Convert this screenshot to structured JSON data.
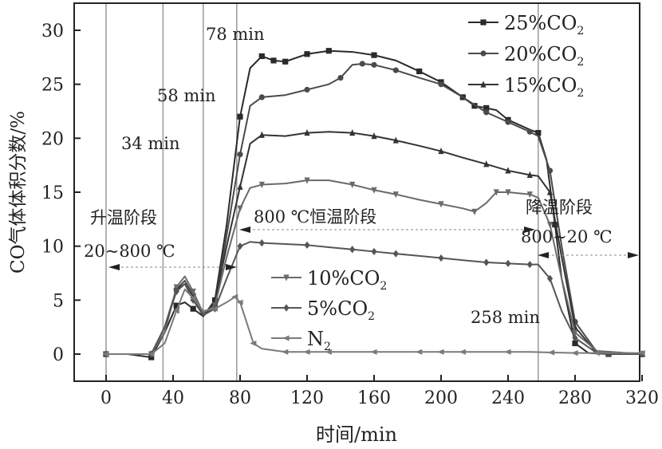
{
  "chart_data": {
    "type": "line",
    "title": "",
    "xlabel": "时间/min",
    "ylabel": "CO气体体积分数/%",
    "xlim": [
      -20,
      320
    ],
    "ylim": [
      -3,
      32.5
    ],
    "xticks": [
      0,
      40,
      80,
      120,
      160,
      200,
      240,
      280,
      320
    ],
    "yticks": [
      0,
      5,
      10,
      15,
      20,
      25,
      30
    ],
    "grid": false,
    "legend_placement": [
      "top-right",
      "center"
    ],
    "vlines": [
      0,
      34,
      58,
      78,
      258
    ],
    "annotations": {
      "t34": "34 min",
      "t58": "58 min",
      "t78": "78 min",
      "t258": "258 min",
      "heat": "升温阶段",
      "heat_range": "20~800 ℃",
      "hold": "800 ℃恒温阶段",
      "cool": "降温阶段",
      "cool_range": "800~20 ℃"
    },
    "series": [
      {
        "name": "25%CO2",
        "label": "25%CO",
        "sub": "2",
        "marker": "square",
        "color": "#2a2a2a",
        "points": [
          [
            0,
            0
          ],
          [
            13,
            0
          ],
          [
            27,
            -0.3
          ],
          [
            35,
            2
          ],
          [
            42,
            4.5
          ],
          [
            47,
            4.8
          ],
          [
            52,
            4.2
          ],
          [
            58,
            3.5
          ],
          [
            65,
            5
          ],
          [
            72,
            12
          ],
          [
            80,
            22
          ],
          [
            86,
            26.5
          ],
          [
            93,
            27.6
          ],
          [
            100,
            27.2
          ],
          [
            107,
            27.1
          ],
          [
            120,
            27.8
          ],
          [
            133,
            28.1
          ],
          [
            147,
            28
          ],
          [
            160,
            27.7
          ],
          [
            173,
            27.2
          ],
          [
            187,
            26.2
          ],
          [
            200,
            25.2
          ],
          [
            213,
            23.8
          ],
          [
            220,
            23
          ],
          [
            227,
            22.8
          ],
          [
            233,
            22.6
          ],
          [
            240,
            21.7
          ],
          [
            253,
            20.8
          ],
          [
            258,
            20.5
          ],
          [
            263,
            18
          ],
          [
            268,
            12
          ],
          [
            272,
            7
          ],
          [
            280,
            1
          ],
          [
            288,
            0.1
          ],
          [
            300,
            0
          ],
          [
            320,
            0
          ]
        ]
      },
      {
        "name": "20%CO2",
        "label": "20%CO",
        "sub": "2",
        "marker": "circle",
        "color": "#4a4a4a",
        "points": [
          [
            0,
            0
          ],
          [
            13,
            0
          ],
          [
            27,
            0
          ],
          [
            35,
            2.5
          ],
          [
            42,
            6
          ],
          [
            47,
            6.8
          ],
          [
            52,
            5.5
          ],
          [
            58,
            3.6
          ],
          [
            65,
            4.5
          ],
          [
            72,
            11
          ],
          [
            80,
            18.5
          ],
          [
            86,
            23
          ],
          [
            93,
            23.8
          ],
          [
            107,
            24
          ],
          [
            120,
            24.5
          ],
          [
            133,
            25
          ],
          [
            140,
            25.6
          ],
          [
            147,
            26.8
          ],
          [
            153,
            26.9
          ],
          [
            160,
            26.8
          ],
          [
            173,
            26.3
          ],
          [
            187,
            25.6
          ],
          [
            200,
            25
          ],
          [
            213,
            23.8
          ],
          [
            227,
            22.4
          ],
          [
            240,
            21.5
          ],
          [
            253,
            20.6
          ],
          [
            258,
            20.2
          ],
          [
            265,
            17
          ],
          [
            272,
            10
          ],
          [
            280,
            3
          ],
          [
            293,
            0.2
          ],
          [
            300,
            0
          ],
          [
            320,
            0
          ]
        ]
      },
      {
        "name": "15%CO2",
        "label": "15%CO",
        "sub": "2",
        "marker": "triangle-up",
        "color": "#333333",
        "points": [
          [
            0,
            0
          ],
          [
            13,
            0
          ],
          [
            27,
            0
          ],
          [
            35,
            2.5
          ],
          [
            42,
            6
          ],
          [
            47,
            6.5
          ],
          [
            52,
            5.2
          ],
          [
            58,
            3.5
          ],
          [
            65,
            4.8
          ],
          [
            72,
            10
          ],
          [
            80,
            15.5
          ],
          [
            86,
            19.5
          ],
          [
            93,
            20.3
          ],
          [
            107,
            20.2
          ],
          [
            120,
            20.5
          ],
          [
            133,
            20.6
          ],
          [
            147,
            20.5
          ],
          [
            160,
            20.2
          ],
          [
            173,
            19.8
          ],
          [
            187,
            19.3
          ],
          [
            200,
            18.8
          ],
          [
            213,
            18.2
          ],
          [
            227,
            17.6
          ],
          [
            240,
            17
          ],
          [
            253,
            16.6
          ],
          [
            258,
            16.5
          ],
          [
            265,
            15
          ],
          [
            272,
            9
          ],
          [
            280,
            2.5
          ],
          [
            293,
            0.1
          ],
          [
            320,
            0
          ]
        ]
      },
      {
        "name": "10%CO2",
        "label": "10%CO",
        "sub": "2",
        "marker": "triangle-down",
        "color": "#6a6a6a",
        "points": [
          [
            0,
            0
          ],
          [
            13,
            0
          ],
          [
            27,
            0
          ],
          [
            35,
            2
          ],
          [
            42,
            6.2
          ],
          [
            47,
            7.2
          ],
          [
            52,
            5.8
          ],
          [
            58,
            3.8
          ],
          [
            65,
            4.5
          ],
          [
            72,
            9
          ],
          [
            80,
            13.5
          ],
          [
            86,
            15.4
          ],
          [
            93,
            15.7
          ],
          [
            107,
            15.8
          ],
          [
            120,
            16.1
          ],
          [
            133,
            16.1
          ],
          [
            147,
            15.7
          ],
          [
            160,
            15.2
          ],
          [
            173,
            14.8
          ],
          [
            187,
            14.3
          ],
          [
            200,
            13.9
          ],
          [
            213,
            13.5
          ],
          [
            220,
            13.2
          ],
          [
            227,
            14
          ],
          [
            233,
            15
          ],
          [
            240,
            15
          ],
          [
            253,
            14.8
          ],
          [
            258,
            14.5
          ],
          [
            265,
            12
          ],
          [
            272,
            7
          ],
          [
            280,
            2
          ],
          [
            293,
            0.3
          ],
          [
            320,
            0
          ]
        ]
      },
      {
        "name": "5%CO2",
        "label": "5%CO",
        "sub": "2",
        "marker": "diamond",
        "color": "#555555",
        "points": [
          [
            0,
            0
          ],
          [
            13,
            0
          ],
          [
            27,
            0
          ],
          [
            35,
            2.5
          ],
          [
            42,
            5.8
          ],
          [
            47,
            6.5
          ],
          [
            52,
            5
          ],
          [
            58,
            3.6
          ],
          [
            65,
            4.2
          ],
          [
            72,
            7
          ],
          [
            80,
            10
          ],
          [
            86,
            10.4
          ],
          [
            93,
            10.3
          ],
          [
            107,
            10.2
          ],
          [
            120,
            10.1
          ],
          [
            133,
            9.9
          ],
          [
            147,
            9.7
          ],
          [
            160,
            9.5
          ],
          [
            173,
            9.3
          ],
          [
            187,
            9.1
          ],
          [
            200,
            8.9
          ],
          [
            213,
            8.7
          ],
          [
            227,
            8.5
          ],
          [
            240,
            8.4
          ],
          [
            253,
            8.3
          ],
          [
            258,
            8.3
          ],
          [
            265,
            7
          ],
          [
            272,
            4
          ],
          [
            280,
            1.5
          ],
          [
            293,
            0.1
          ],
          [
            320,
            0
          ]
        ]
      },
      {
        "name": "N2",
        "label": "N",
        "sub": "2",
        "marker": "triangle-left",
        "color": "#7a7a7a",
        "points": [
          [
            0,
            0
          ],
          [
            13,
            0
          ],
          [
            27,
            0
          ],
          [
            35,
            1
          ],
          [
            42,
            4
          ],
          [
            47,
            6
          ],
          [
            52,
            5.2
          ],
          [
            58,
            4
          ],
          [
            65,
            4.2
          ],
          [
            72,
            4.8
          ],
          [
            77,
            5.3
          ],
          [
            80,
            4.8
          ],
          [
            88,
            1
          ],
          [
            93,
            0.5
          ],
          [
            107,
            0.2
          ],
          [
            120,
            0.2
          ],
          [
            133,
            0.2
          ],
          [
            147,
            0.2
          ],
          [
            160,
            0.2
          ],
          [
            173,
            0.2
          ],
          [
            187,
            0.2
          ],
          [
            200,
            0.2
          ],
          [
            213,
            0.2
          ],
          [
            227,
            0.2
          ],
          [
            240,
            0.2
          ],
          [
            253,
            0.2
          ],
          [
            266,
            0.15
          ],
          [
            280,
            0.1
          ],
          [
            293,
            0.1
          ],
          [
            307,
            0.1
          ],
          [
            320,
            0.1
          ]
        ]
      }
    ]
  }
}
